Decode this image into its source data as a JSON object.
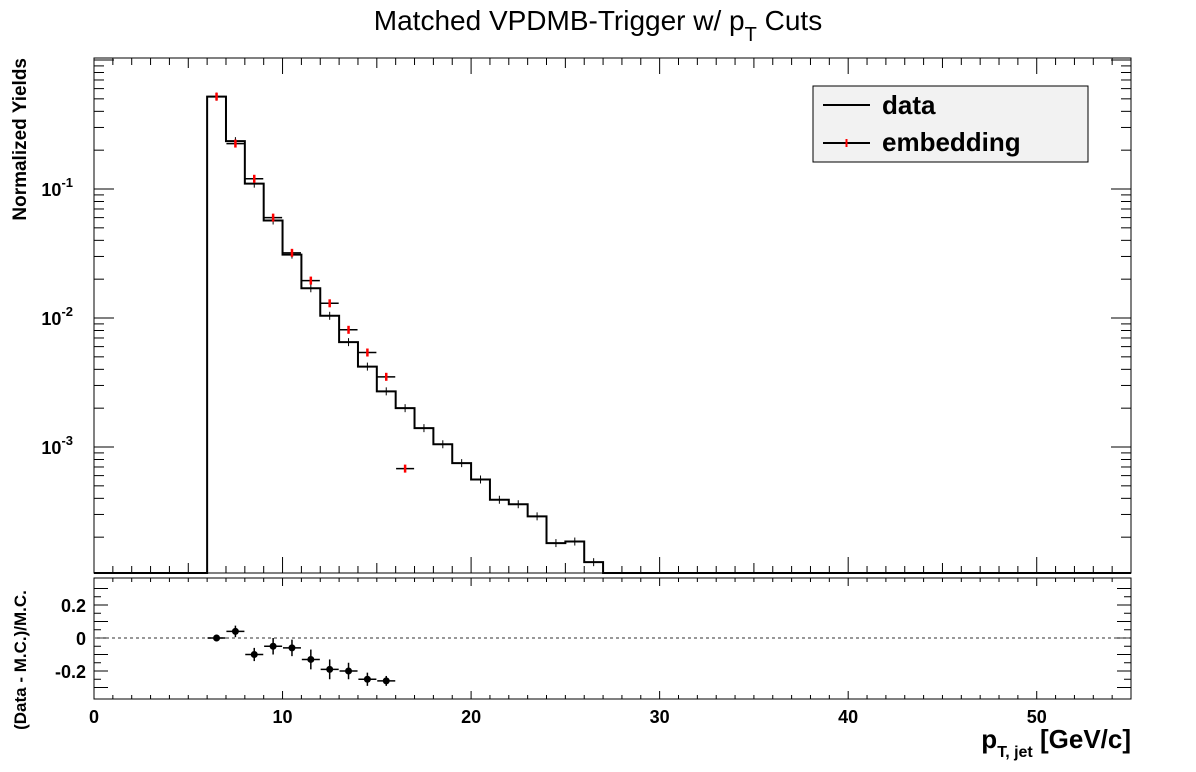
{
  "chart_data": [
    {
      "type": "histogram",
      "panel": "top",
      "title": "Matched VPDMB-Trigger w/ p",
      "title_sub": "T",
      "title_suffix": " Cuts",
      "ylabel": "Normalized Yields",
      "yscale": "log",
      "ylim": [
        0.00012,
        0.9
      ],
      "xlim": [
        0,
        55
      ],
      "ytick_labels": [
        {
          "base": "10",
          "exp": "-1",
          "value": 0.1
        },
        {
          "base": "10",
          "exp": "-2",
          "value": 0.01
        },
        {
          "base": "10",
          "exp": "-3",
          "value": 0.001
        }
      ],
      "legend": {
        "position": "top-right",
        "entries": [
          "data",
          "embedding"
        ]
      },
      "series": [
        {
          "name": "data",
          "style": "step",
          "color": "#000000",
          "bins": [
            {
              "x0": 6,
              "x1": 7,
              "y": 0.52
            },
            {
              "x0": 7,
              "x1": 8,
              "y": 0.235
            },
            {
              "x0": 8,
              "x1": 9,
              "y": 0.11
            },
            {
              "x0": 9,
              "x1": 10,
              "y": 0.057
            },
            {
              "x0": 10,
              "x1": 11,
              "y": 0.031
            },
            {
              "x0": 11,
              "x1": 12,
              "y": 0.017
            },
            {
              "x0": 12,
              "x1": 13,
              "y": 0.0104
            },
            {
              "x0": 13,
              "x1": 14,
              "y": 0.0065
            },
            {
              "x0": 14,
              "x1": 15,
              "y": 0.0042
            },
            {
              "x0": 15,
              "x1": 16,
              "y": 0.0027
            },
            {
              "x0": 16,
              "x1": 17,
              "y": 0.002
            },
            {
              "x0": 17,
              "x1": 18,
              "y": 0.0014
            },
            {
              "x0": 18,
              "x1": 19,
              "y": 0.00105
            },
            {
              "x0": 19,
              "x1": 20,
              "y": 0.00075
            },
            {
              "x0": 20,
              "x1": 21,
              "y": 0.00056
            },
            {
              "x0": 21,
              "x1": 22,
              "y": 0.00039
            },
            {
              "x0": 22,
              "x1": 23,
              "y": 0.00036
            },
            {
              "x0": 23,
              "x1": 24,
              "y": 0.00029
            },
            {
              "x0": 24,
              "x1": 25,
              "y": 0.00018
            },
            {
              "x0": 25,
              "x1": 26,
              "y": 0.000185
            },
            {
              "x0": 26,
              "x1": 27,
              "y": 0.000128
            }
          ]
        },
        {
          "name": "embedding",
          "style": "points",
          "color": "#ff0000",
          "points": [
            {
              "x": 6.5,
              "y": 0.52
            },
            {
              "x": 7.5,
              "y": 0.225
            },
            {
              "x": 8.5,
              "y": 0.12
            },
            {
              "x": 9.5,
              "y": 0.06
            },
            {
              "x": 10.5,
              "y": 0.032
            },
            {
              "x": 11.5,
              "y": 0.0195
            },
            {
              "x": 12.5,
              "y": 0.013
            },
            {
              "x": 13.5,
              "y": 0.0081
            },
            {
              "x": 14.5,
              "y": 0.0054
            },
            {
              "x": 15.5,
              "y": 0.0035
            },
            {
              "x": 16.5,
              "y": 0.00068
            }
          ]
        }
      ]
    },
    {
      "type": "scatter",
      "panel": "bottom",
      "xlabel_main": "p",
      "xlabel_sub": "T, jet",
      "xlabel_suffix": " [GeV/c]",
      "ylabel": "(Data - M.C.)/M.C.",
      "xlim": [
        0,
        55
      ],
      "ylim": [
        -0.37,
        0.37
      ],
      "xtick_labels": [
        "0",
        "10",
        "20",
        "30",
        "40",
        "50"
      ],
      "ytick_labels": [
        "0.2",
        "0",
        "-0.2"
      ],
      "reference_line": 0,
      "series": [
        {
          "name": "",
          "color": "#000000",
          "points": [
            {
              "x": 6.5,
              "y": 0.0,
              "err": 0.02
            },
            {
              "x": 7.5,
              "y": 0.04,
              "err": 0.035
            },
            {
              "x": 8.5,
              "y": -0.1,
              "err": 0.04
            },
            {
              "x": 9.5,
              "y": -0.05,
              "err": 0.05
            },
            {
              "x": 10.5,
              "y": -0.06,
              "err": 0.05
            },
            {
              "x": 11.5,
              "y": -0.13,
              "err": 0.06
            },
            {
              "x": 12.5,
              "y": -0.19,
              "err": 0.06
            },
            {
              "x": 13.5,
              "y": -0.2,
              "err": 0.05
            },
            {
              "x": 14.5,
              "y": -0.25,
              "err": 0.04
            },
            {
              "x": 15.5,
              "y": -0.26,
              "err": 0.03
            }
          ]
        }
      ]
    }
  ]
}
